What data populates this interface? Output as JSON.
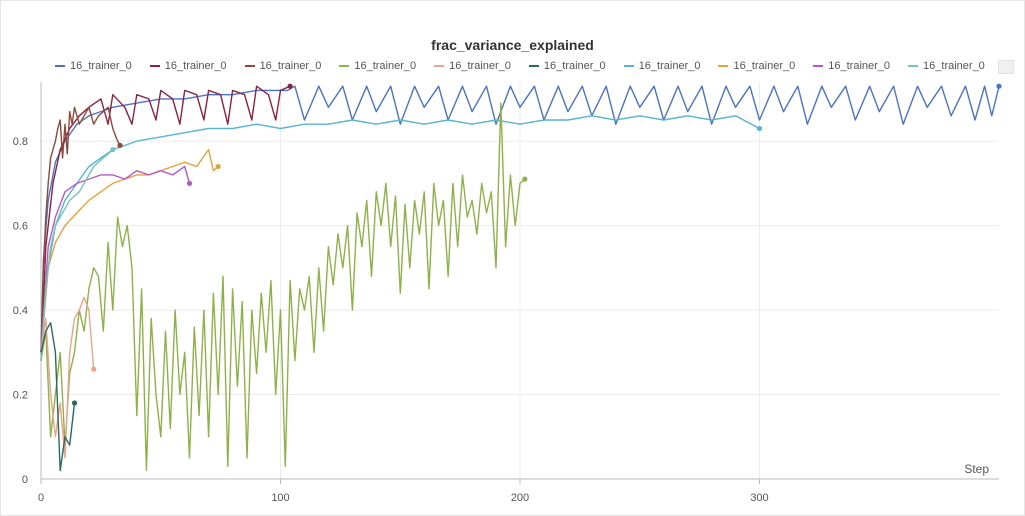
{
  "chart_data": {
    "type": "line",
    "title": "frac_variance_explained",
    "xlabel": "Step",
    "ylabel": "",
    "xlim": [
      0,
      400
    ],
    "ylim": [
      0,
      0.94
    ],
    "x_ticks": [
      0,
      100,
      200,
      300
    ],
    "y_ticks": [
      0,
      0.2,
      0.4,
      0.6,
      0.8
    ],
    "grid": true,
    "legend_position": "top",
    "series": [
      {
        "name": "16_trainer_0",
        "color": "#4b73c4",
        "x": [
          0,
          1,
          3,
          6,
          10,
          15,
          20,
          25,
          30,
          40,
          50,
          60,
          70,
          80,
          90,
          100,
          103,
          106,
          110,
          116,
          120,
          126,
          130,
          136,
          140,
          146,
          150,
          156,
          160,
          166,
          170,
          176,
          180,
          186,
          190,
          196,
          200,
          206,
          210,
          216,
          220,
          226,
          230,
          236,
          240,
          246,
          250,
          256,
          260,
          266,
          270,
          276,
          280,
          286,
          290,
          296,
          300,
          306,
          310,
          316,
          320,
          326,
          330,
          336,
          340,
          346,
          350,
          356,
          360,
          366,
          370,
          376,
          380,
          386,
          390,
          394,
          397,
          400
        ],
        "y": [
          0.3,
          0.52,
          0.66,
          0.75,
          0.8,
          0.84,
          0.86,
          0.87,
          0.88,
          0.89,
          0.9,
          0.9,
          0.91,
          0.91,
          0.92,
          0.92,
          0.92,
          0.93,
          0.85,
          0.93,
          0.88,
          0.93,
          0.85,
          0.93,
          0.87,
          0.93,
          0.84,
          0.93,
          0.88,
          0.93,
          0.85,
          0.93,
          0.87,
          0.93,
          0.84,
          0.93,
          0.88,
          0.93,
          0.85,
          0.93,
          0.87,
          0.93,
          0.86,
          0.93,
          0.84,
          0.93,
          0.88,
          0.93,
          0.85,
          0.93,
          0.87,
          0.93,
          0.84,
          0.93,
          0.88,
          0.93,
          0.85,
          0.93,
          0.87,
          0.93,
          0.84,
          0.93,
          0.88,
          0.93,
          0.85,
          0.93,
          0.87,
          0.93,
          0.84,
          0.93,
          0.88,
          0.93,
          0.86,
          0.93,
          0.85,
          0.93,
          0.86,
          0.93
        ]
      },
      {
        "name": "16_trainer_0",
        "color": "#8c2143",
        "x": [
          0,
          2,
          5,
          8,
          12,
          16,
          20,
          25,
          28,
          30,
          35,
          38,
          40,
          45,
          48,
          50,
          55,
          58,
          60,
          65,
          68,
          70,
          75,
          78,
          80,
          85,
          88,
          90,
          95,
          98,
          100,
          104
        ],
        "y": [
          0.28,
          0.55,
          0.7,
          0.78,
          0.83,
          0.86,
          0.88,
          0.9,
          0.84,
          0.91,
          0.88,
          0.84,
          0.91,
          0.9,
          0.85,
          0.92,
          0.9,
          0.84,
          0.92,
          0.91,
          0.85,
          0.92,
          0.91,
          0.84,
          0.92,
          0.91,
          0.85,
          0.93,
          0.91,
          0.85,
          0.92,
          0.93
        ]
      },
      {
        "name": "16_trainer_0",
        "color": "#8a4b3a",
        "x": [
          0,
          1,
          2,
          3,
          4,
          5,
          6,
          7,
          8,
          9,
          10,
          11,
          12,
          13,
          14,
          16,
          18,
          20,
          22,
          24,
          26,
          28,
          30,
          32,
          33
        ],
        "y": [
          0.3,
          0.5,
          0.62,
          0.7,
          0.76,
          0.78,
          0.8,
          0.83,
          0.85,
          0.76,
          0.84,
          0.77,
          0.87,
          0.84,
          0.88,
          0.84,
          0.86,
          0.88,
          0.84,
          0.86,
          0.87,
          0.88,
          0.83,
          0.8,
          0.79
        ]
      },
      {
        "name": "16_trainer_0",
        "color": "#8fb14a",
        "x": [
          0,
          2,
          4,
          6,
          8,
          10,
          12,
          14,
          16,
          18,
          20,
          22,
          24,
          26,
          28,
          30,
          32,
          34,
          36,
          38,
          40,
          42,
          44,
          46,
          48,
          50,
          52,
          54,
          56,
          58,
          60,
          62,
          64,
          66,
          68,
          70,
          72,
          74,
          76,
          78,
          80,
          82,
          84,
          86,
          88,
          90,
          92,
          94,
          96,
          98,
          100,
          102,
          104,
          106,
          108,
          110,
          112,
          114,
          116,
          118,
          120,
          122,
          124,
          126,
          128,
          130,
          132,
          134,
          136,
          138,
          140,
          142,
          144,
          146,
          148,
          150,
          152,
          154,
          156,
          158,
          160,
          162,
          164,
          166,
          168,
          170,
          172,
          174,
          176,
          178,
          180,
          182,
          184,
          186,
          188,
          190,
          192,
          194,
          196,
          198,
          200,
          202
        ],
        "y": [
          0.28,
          0.35,
          0.1,
          0.2,
          0.3,
          0.08,
          0.25,
          0.3,
          0.4,
          0.35,
          0.45,
          0.5,
          0.48,
          0.35,
          0.56,
          0.4,
          0.62,
          0.55,
          0.6,
          0.5,
          0.15,
          0.45,
          0.02,
          0.38,
          0.2,
          0.1,
          0.35,
          0.12,
          0.4,
          0.2,
          0.3,
          0.05,
          0.36,
          0.15,
          0.4,
          0.1,
          0.44,
          0.2,
          0.48,
          0.03,
          0.45,
          0.22,
          0.42,
          0.05,
          0.4,
          0.25,
          0.44,
          0.3,
          0.47,
          0.2,
          0.4,
          0.03,
          0.47,
          0.28,
          0.45,
          0.4,
          0.48,
          0.3,
          0.5,
          0.35,
          0.55,
          0.46,
          0.58,
          0.5,
          0.6,
          0.4,
          0.63,
          0.55,
          0.66,
          0.48,
          0.68,
          0.6,
          0.7,
          0.55,
          0.67,
          0.44,
          0.65,
          0.5,
          0.66,
          0.58,
          0.68,
          0.45,
          0.7,
          0.6,
          0.66,
          0.48,
          0.7,
          0.55,
          0.72,
          0.62,
          0.66,
          0.58,
          0.7,
          0.63,
          0.68,
          0.5,
          0.89,
          0.55,
          0.72,
          0.6,
          0.7,
          0.71
        ]
      },
      {
        "name": "16_trainer_0",
        "color": "#e8a58c",
        "x": [
          0,
          2,
          4,
          6,
          8,
          10,
          12,
          14,
          16,
          18,
          20,
          22
        ],
        "y": [
          0.3,
          0.38,
          0.2,
          0.1,
          0.18,
          0.05,
          0.3,
          0.38,
          0.4,
          0.43,
          0.4,
          0.26
        ]
      },
      {
        "name": "16_trainer_0",
        "color": "#2a6a5c",
        "x": [
          0,
          2,
          4,
          6,
          8,
          10,
          12,
          14
        ],
        "y": [
          0.3,
          0.35,
          0.37,
          0.3,
          0.02,
          0.1,
          0.08,
          0.18
        ]
      },
      {
        "name": "16_trainer_0",
        "color": "#5ab4cf",
        "x": [
          0,
          3,
          6,
          10,
          15,
          20,
          25,
          30,
          40,
          50,
          60,
          70,
          80,
          90,
          100,
          110,
          120,
          130,
          140,
          150,
          160,
          170,
          180,
          190,
          200,
          210,
          220,
          230,
          240,
          250,
          260,
          270,
          280,
          290,
          300
        ],
        "y": [
          0.3,
          0.5,
          0.6,
          0.66,
          0.7,
          0.74,
          0.76,
          0.78,
          0.8,
          0.81,
          0.82,
          0.83,
          0.83,
          0.84,
          0.83,
          0.84,
          0.84,
          0.85,
          0.84,
          0.85,
          0.84,
          0.85,
          0.84,
          0.85,
          0.84,
          0.85,
          0.85,
          0.86,
          0.85,
          0.86,
          0.85,
          0.86,
          0.85,
          0.86,
          0.83
        ]
      },
      {
        "name": "16_trainer_0",
        "color": "#e5a23c",
        "x": [
          0,
          3,
          6,
          10,
          15,
          20,
          25,
          30,
          35,
          40,
          45,
          50,
          55,
          60,
          65,
          70,
          72,
          74
        ],
        "y": [
          0.3,
          0.5,
          0.56,
          0.6,
          0.63,
          0.66,
          0.68,
          0.7,
          0.71,
          0.72,
          0.72,
          0.73,
          0.74,
          0.75,
          0.74,
          0.78,
          0.73,
          0.74
        ]
      },
      {
        "name": "16_trainer_0",
        "color": "#b55ac4",
        "x": [
          0,
          3,
          6,
          10,
          15,
          20,
          25,
          30,
          35,
          40,
          45,
          50,
          55,
          60,
          62
        ],
        "y": [
          0.3,
          0.55,
          0.62,
          0.68,
          0.7,
          0.71,
          0.72,
          0.72,
          0.71,
          0.73,
          0.72,
          0.73,
          0.72,
          0.74,
          0.7
        ]
      },
      {
        "name": "16_trainer_0",
        "color": "#72c6b8",
        "x": [
          0,
          2,
          4,
          6,
          8,
          10,
          12,
          14,
          16,
          18,
          20,
          22,
          24,
          26,
          28,
          30
        ],
        "y": [
          0.28,
          0.45,
          0.55,
          0.6,
          0.62,
          0.64,
          0.66,
          0.67,
          0.68,
          0.7,
          0.72,
          0.74,
          0.75,
          0.76,
          0.77,
          0.78
        ]
      }
    ]
  }
}
